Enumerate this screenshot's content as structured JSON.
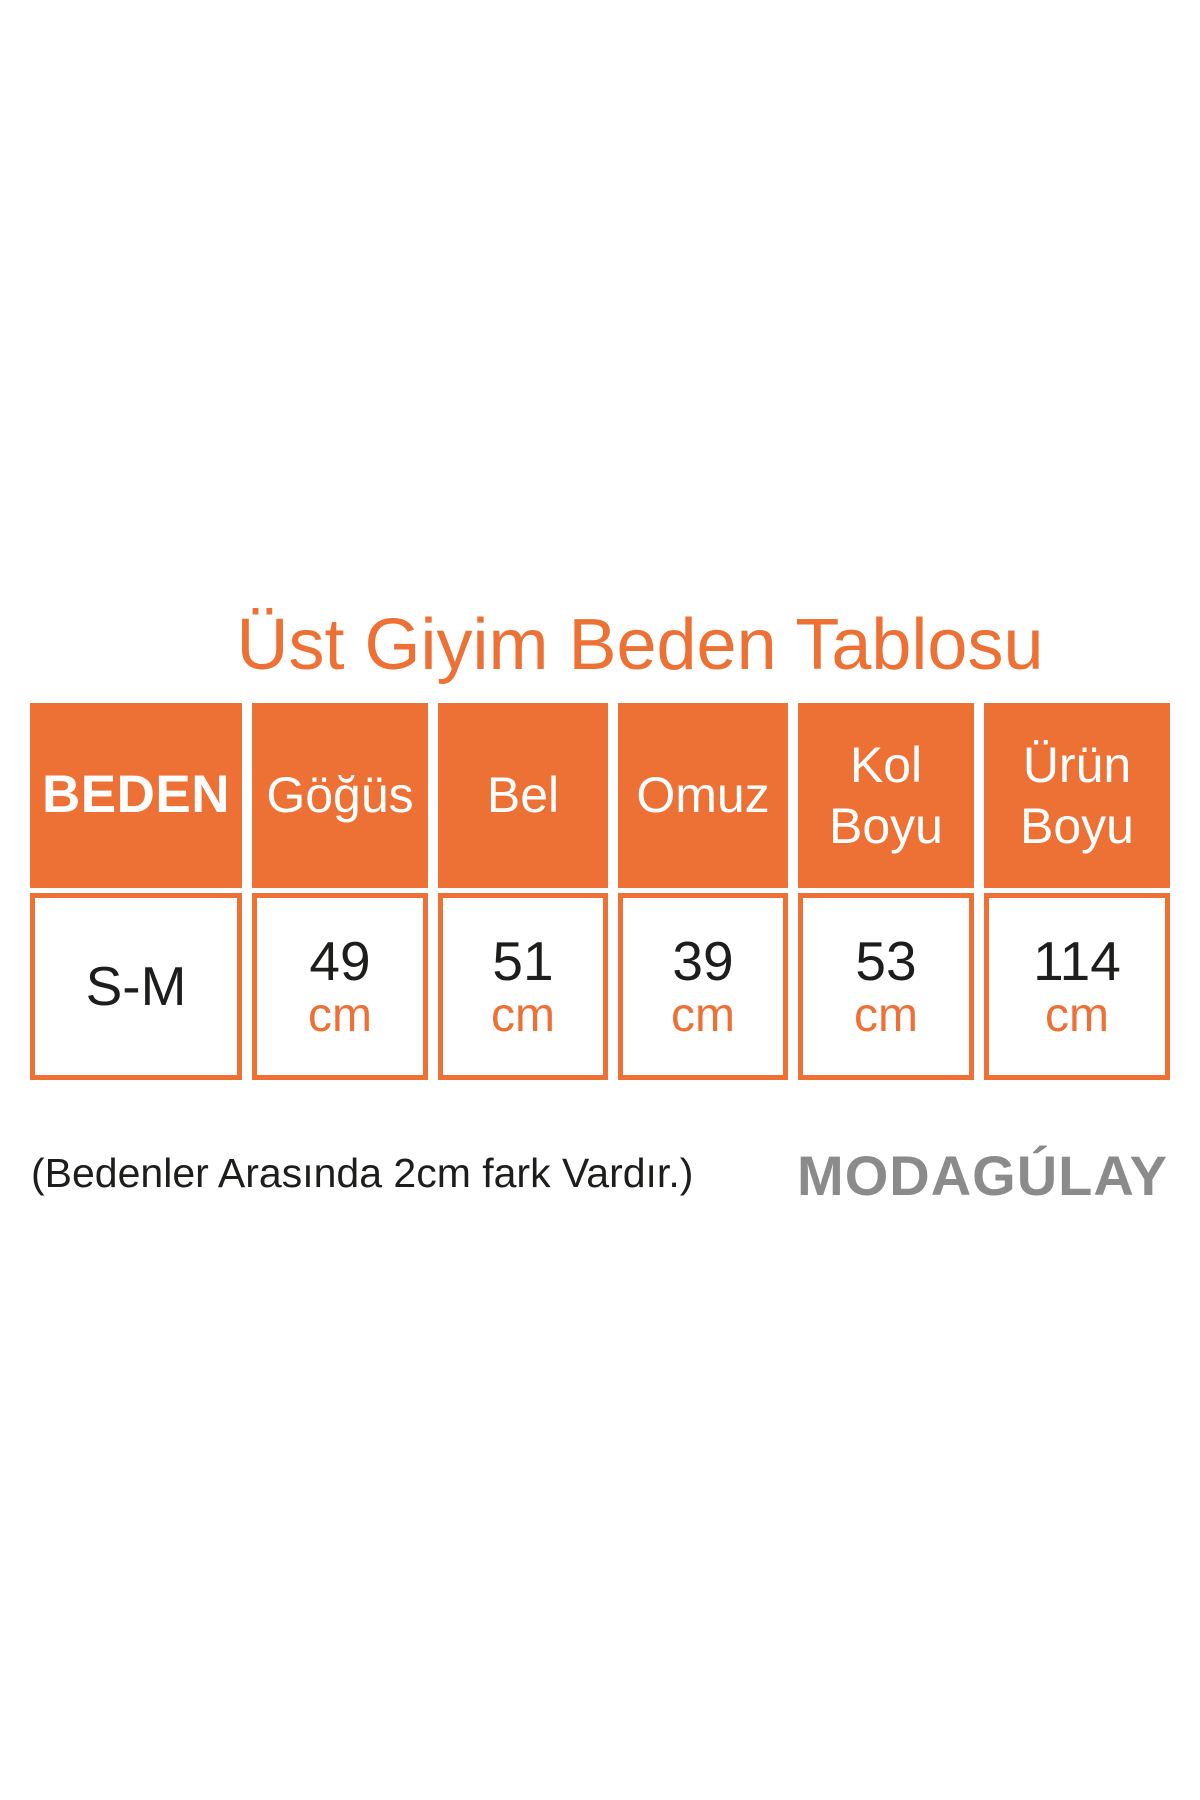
{
  "title": "Üst Giyim Beden Tablosu",
  "colors": {
    "accent": "#ED7034",
    "text_dark": "#1D1D1B",
    "logo_gray": "#8B8B8B"
  },
  "table": {
    "columns": [
      "BEDEN",
      "Göğüs",
      "Bel",
      "Omuz",
      "Kol Boyu",
      "Ürün Boyu"
    ],
    "unit": "cm",
    "rows": [
      {
        "beden": "S-M",
        "values": [
          "49",
          "51",
          "39",
          "53",
          "114"
        ]
      }
    ]
  },
  "note": "(Bedenler Arasında 2cm fark Vardır.)",
  "brand": {
    "logo_text": "MODAGÚLAY"
  }
}
